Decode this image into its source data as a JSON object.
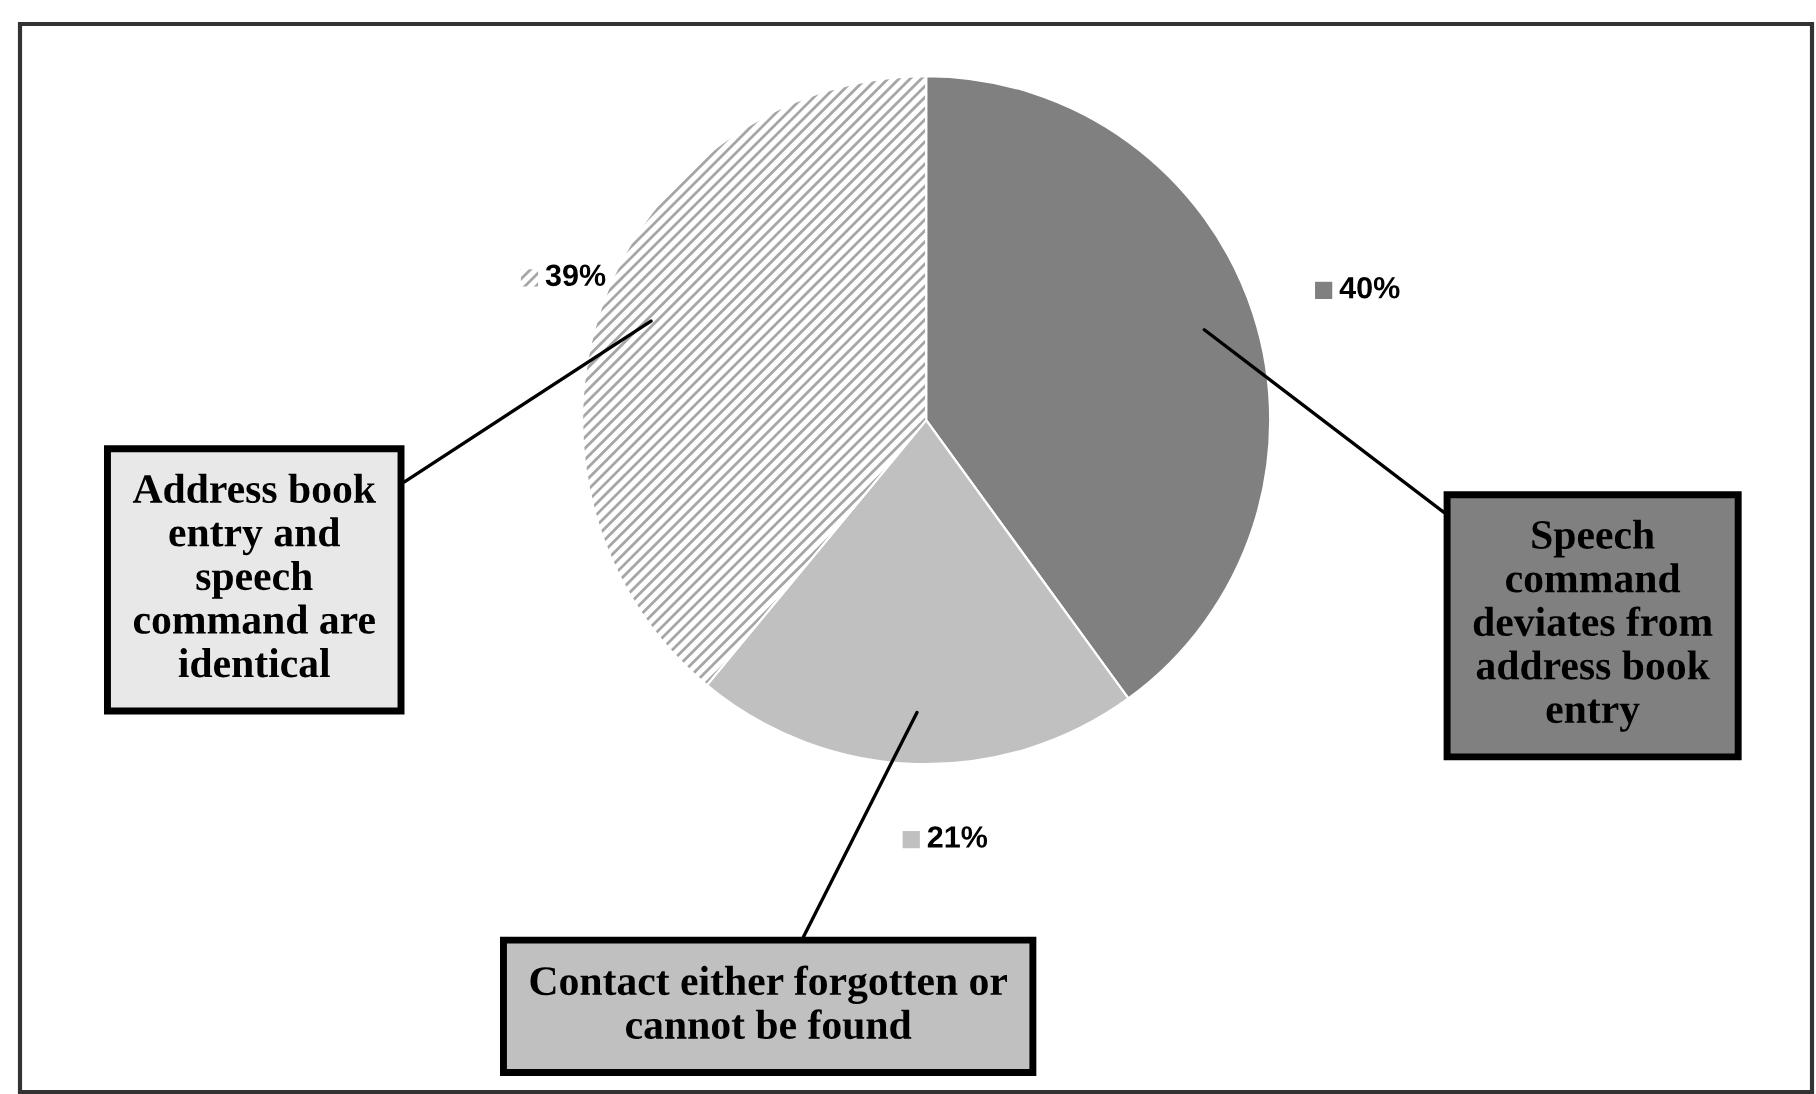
{
  "chart_data": {
    "type": "pie",
    "categories": [
      "Speech command deviates from address book entry",
      "Contact either forgotten or cannot be found",
      "Address book entry and speech command are identical"
    ],
    "values": [
      40,
      21,
      39
    ],
    "colors": [
      "#808080",
      "#c0c0c0",
      "#a6a6a6"
    ],
    "value_labels": [
      "40%",
      "21%",
      "39%"
    ],
    "legend": false
  }
}
